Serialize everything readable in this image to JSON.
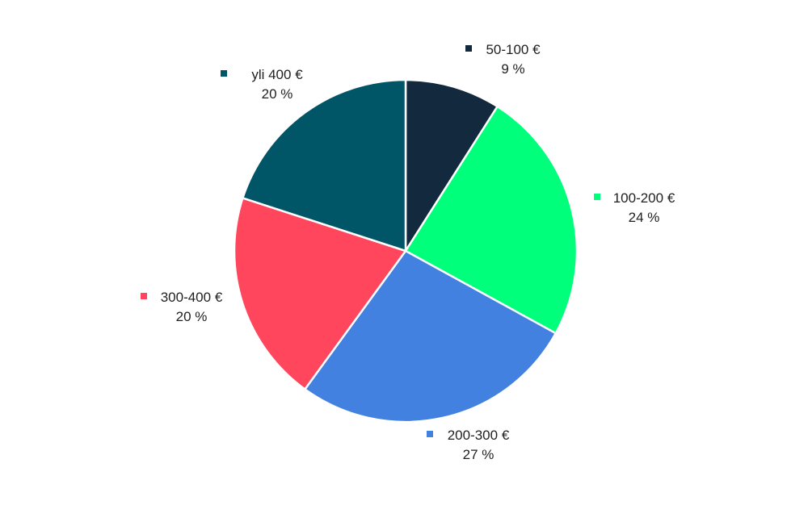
{
  "chart_data": {
    "type": "pie",
    "title": "",
    "series": [
      {
        "values": [
          9,
          24,
          27,
          20,
          20
        ],
        "colors": [
          "#13293d",
          "#00ff7b",
          "#4281df",
          "#ff465c",
          "#005566"
        ]
      }
    ],
    "categories": [
      "50-100 €",
      "100-200 €",
      "200-300 €",
      "300-400 €",
      "yli 400 €"
    ],
    "data_labels": [
      "9 %",
      "24 %",
      "27 %",
      "20 %",
      "20 %"
    ],
    "start_angle_deg": 0,
    "direction": "clockwise",
    "legend": "inline labels with colored square markers"
  }
}
